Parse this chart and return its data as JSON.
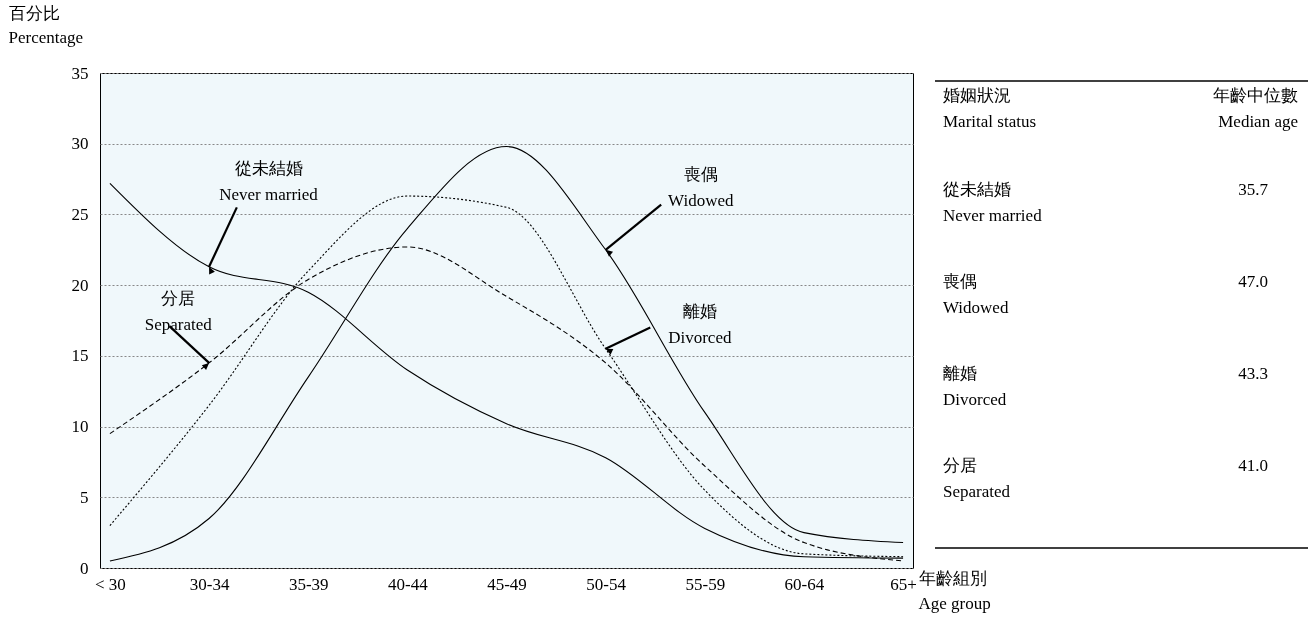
{
  "chart_data": {
    "type": "line",
    "xlabel": "年齡組別\nAge group",
    "ylabel": "百分比\nPercentage",
    "categories": [
      "< 30",
      "30-34",
      "35-39",
      "40-44",
      "45-49",
      "50-54",
      "55-59",
      "60-64",
      "65+"
    ],
    "series": [
      {
        "color": "#000000",
        "line_style": "solid",
        "values": [
          27.2,
          21.3,
          19.5,
          14.0,
          10.2,
          7.8,
          2.8,
          0.8,
          0.7
        ]
      },
      {
        "color": "#000000",
        "line_style": "solid",
        "values": [
          0.5,
          3.5,
          13.5,
          24.0,
          29.8,
          22.5,
          11.0,
          2.5,
          1.8
        ]
      },
      {
        "color": "#000000",
        "line_style": "dotted",
        "values": [
          3.0,
          11.5,
          21.0,
          26.3,
          25.5,
          15.5,
          5.5,
          1.0,
          0.8
        ]
      },
      {
        "color": "#000000",
        "line_style": "dashed",
        "values": [
          9.5,
          14.5,
          20.4,
          22.7,
          19.2,
          14.5,
          7.2,
          1.8,
          0.5
        ]
      }
    ],
    "ylim": [
      0,
      35
    ],
    "yticks": [
      0,
      5,
      10,
      15,
      20,
      25,
      30,
      35
    ],
    "grid": "y",
    "marker": "none",
    "annotations": [
      {
        "text": "從未結婚\nNever married",
        "x": "30-34",
        "y": 21.3
      },
      {
        "text": "喪偶\nWidowed",
        "x": "50-54",
        "y": 22.5
      },
      {
        "text": "離婚\nDivorced",
        "x": "50-54",
        "y": 15.5
      },
      {
        "text": "分居\nSeparated",
        "x": "30-34",
        "y": 14.5
      },
      "婚姻狀況\nMarital status",
      "年齡中位數\nMedian age",
      "從未結婚\nNever married",
      "35.7",
      "喪偶\nWidowed",
      "47.0",
      "離婚\nDivorced",
      "43.3",
      "分居\nSeparated",
      "41.0"
    ]
  }
}
